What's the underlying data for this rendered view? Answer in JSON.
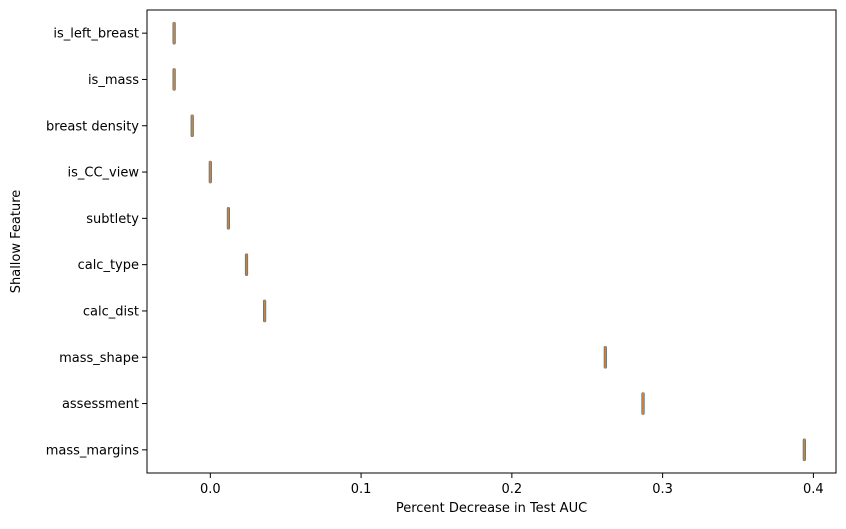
{
  "chart_data": {
    "type": "box",
    "orientation": "horizontal",
    "xlabel": "Percent Decrease in Test AUC",
    "ylabel": "Shallow Feature",
    "xlim": [
      -0.042,
      0.415
    ],
    "xticks": [
      0.0,
      0.1,
      0.2,
      0.3,
      0.4
    ],
    "xtick_labels": [
      "0.0",
      "0.1",
      "0.2",
      "0.3",
      "0.4"
    ],
    "categories": [
      "is_left_breast",
      "is_mass",
      "breast density",
      "is_CC_view",
      "subtlety",
      "calc_type",
      "calc_dist",
      "mass_shape",
      "assessment",
      "mass_margins"
    ],
    "values": [
      -0.024,
      -0.024,
      -0.012,
      0.0,
      0.012,
      0.024,
      0.036,
      0.262,
      0.287,
      0.394
    ],
    "box_color": "#1f77b4",
    "median_color": "#ff7f0e",
    "grid": false,
    "legend": "none"
  }
}
